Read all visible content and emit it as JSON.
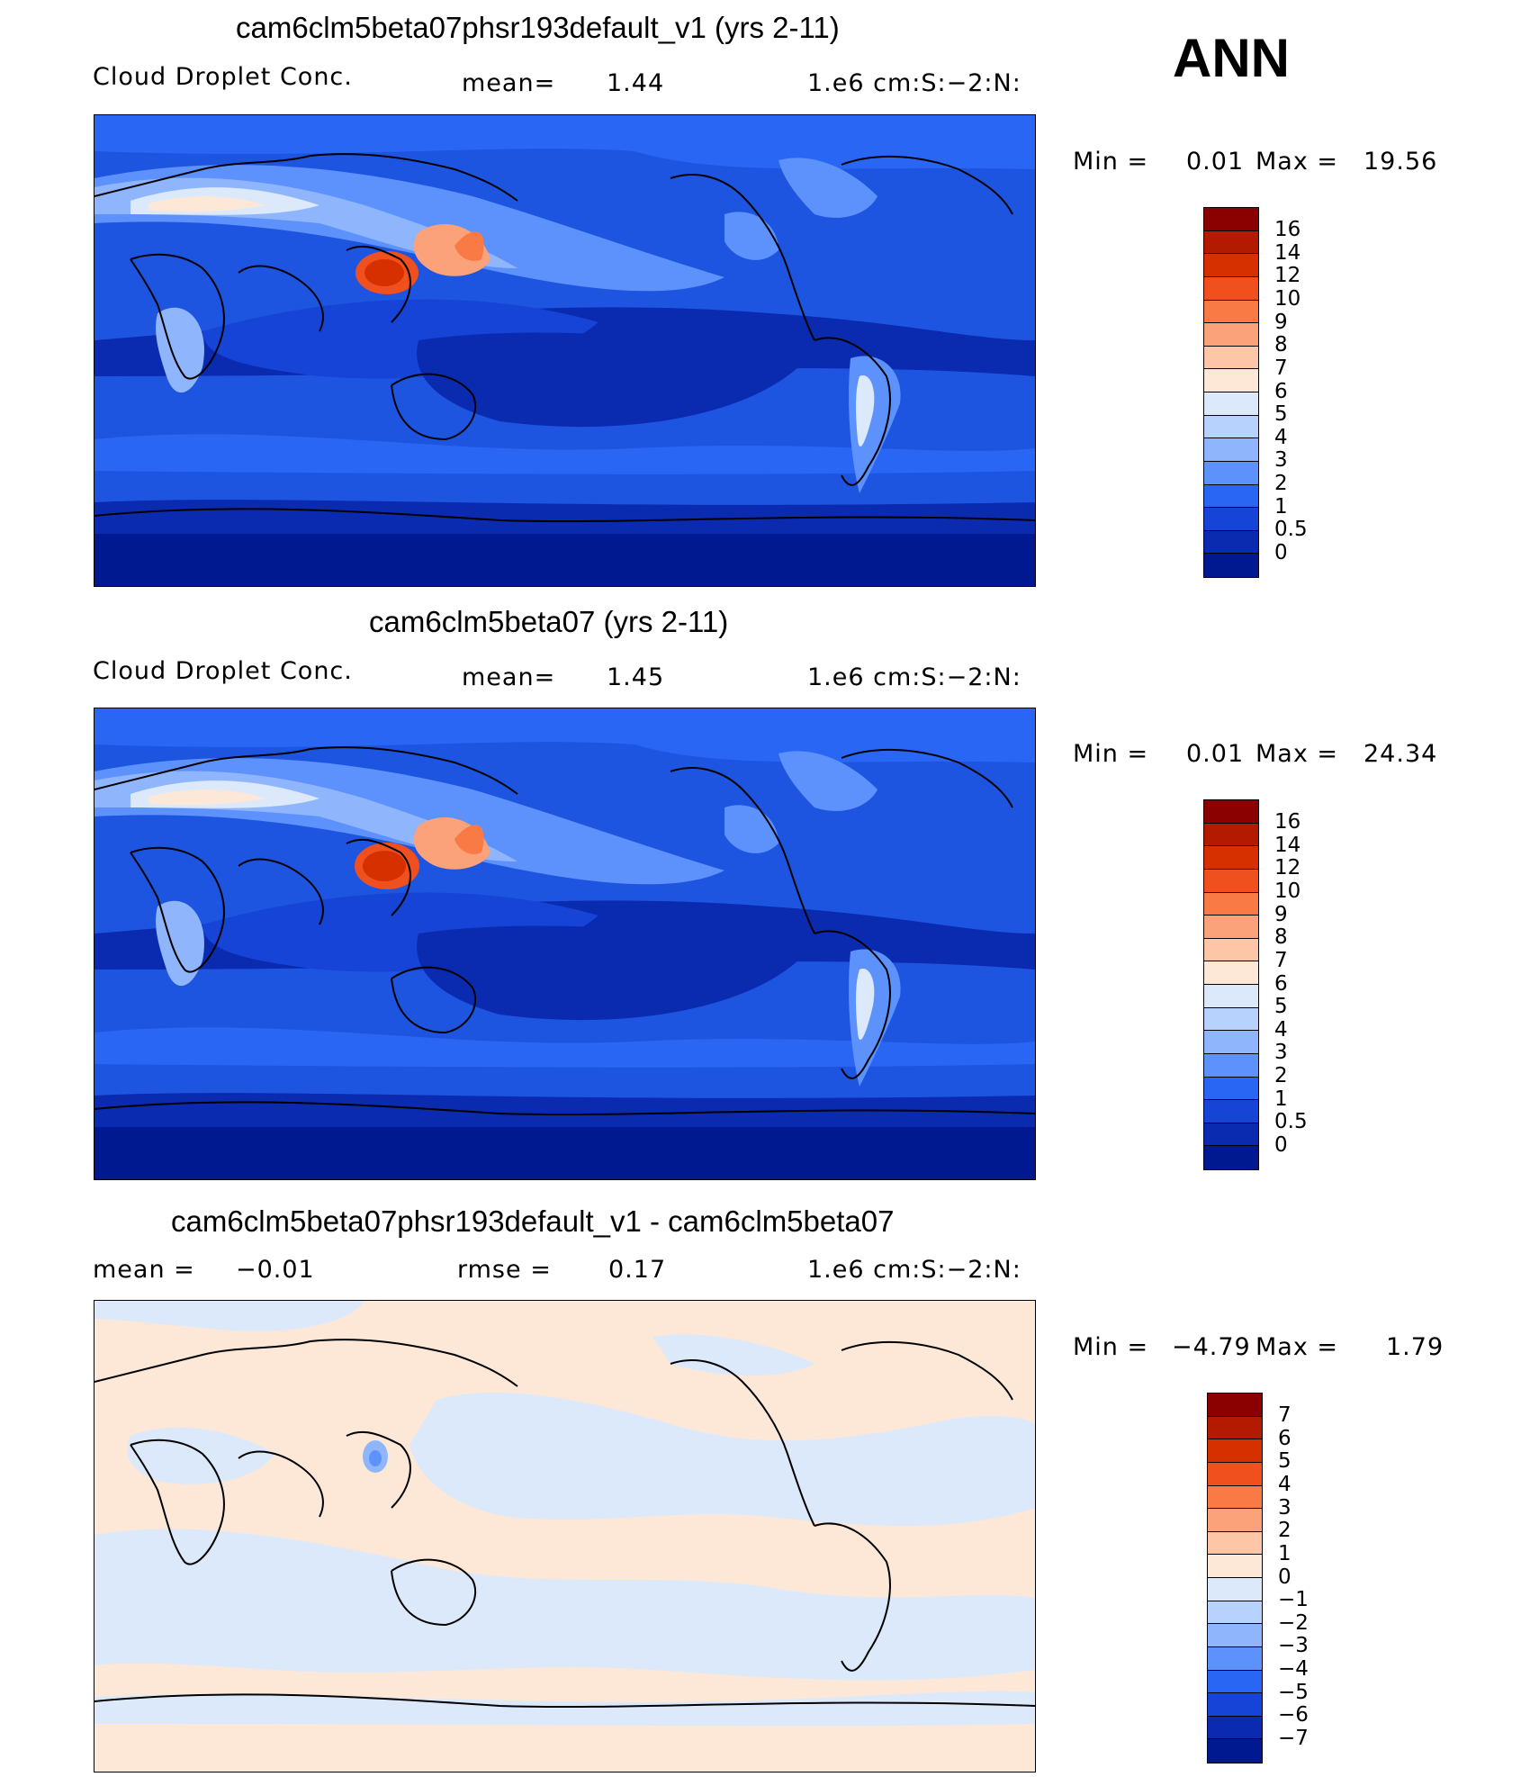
{
  "corner_label": "ANN",
  "panels": [
    {
      "title": "cam6clm5beta07phsr193default_v1 (yrs 2-11)",
      "left_label": "Cloud Droplet Conc.",
      "stat_label": "mean=",
      "stat_value": "1.44",
      "units": "1.e6 cm:S:−2:N:",
      "min_label": "Min =",
      "min_value": "0.01",
      "max_label": "Max =",
      "max_value": "19.56",
      "colorbar_labels": [
        "16",
        "14",
        "12",
        "10",
        "9",
        "8",
        "7",
        "6",
        "5",
        "4",
        "3",
        "2",
        "1",
        "0.5",
        "0"
      ],
      "colors": [
        "#8b0000",
        "#b31a00",
        "#d73000",
        "#f0501e",
        "#fa7a46",
        "#fca27a",
        "#fdc7a7",
        "#fde8d8",
        "#dbe9fb",
        "#b7d2fd",
        "#8fb6fd",
        "#5d92fd",
        "#2a66f4",
        "#1544d6",
        "#0a2ab0",
        "#001890"
      ]
    },
    {
      "title": "cam6clm5beta07 (yrs 2-11)",
      "left_label": "Cloud Droplet Conc.",
      "stat_label": "mean=",
      "stat_value": "1.45",
      "units": "1.e6 cm:S:−2:N:",
      "min_label": "Min =",
      "min_value": "0.01",
      "max_label": "Max =",
      "max_value": "24.34",
      "colorbar_labels": [
        "16",
        "14",
        "12",
        "10",
        "9",
        "8",
        "7",
        "6",
        "5",
        "4",
        "3",
        "2",
        "1",
        "0.5",
        "0"
      ],
      "colors": [
        "#8b0000",
        "#b31a00",
        "#d73000",
        "#f0501e",
        "#fa7a46",
        "#fca27a",
        "#fdc7a7",
        "#fde8d8",
        "#dbe9fb",
        "#b7d2fd",
        "#8fb6fd",
        "#5d92fd",
        "#2a66f4",
        "#1544d6",
        "#0a2ab0",
        "#001890"
      ]
    },
    {
      "title": "cam6clm5beta07phsr193default_v1 - cam6clm5beta07",
      "left_label": "mean =",
      "left_value": "−0.01",
      "stat_label": "rmse =",
      "stat_value": "0.17",
      "units": "1.e6 cm:S:−2:N:",
      "min_label": "Min =",
      "min_value": "−4.79",
      "max_label": "Max =",
      "max_value": "1.79",
      "colorbar_labels": [
        "7",
        "6",
        "5",
        "4",
        "3",
        "2",
        "1",
        "0",
        "−1",
        "−2",
        "−3",
        "−4",
        "−5",
        "−6",
        "−7"
      ],
      "colors": [
        "#8b0000",
        "#b31a00",
        "#d73000",
        "#f0501e",
        "#fa7a46",
        "#fca27a",
        "#fdc7a7",
        "#fde8d8",
        "#dbe9fb",
        "#b7d2fd",
        "#8fb6fd",
        "#5d92fd",
        "#2a66f4",
        "#1544d6",
        "#0a2ab0",
        "#001890"
      ]
    }
  ]
}
